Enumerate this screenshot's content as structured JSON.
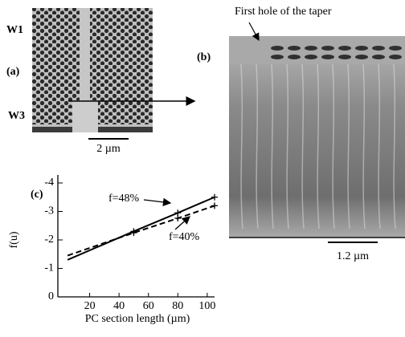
{
  "figure": {
    "panel_a": "(a)",
    "panel_b": "(b)",
    "panel_c": "(c)",
    "w1": "W1",
    "w3": "W3",
    "scale_a": "2 µm",
    "scale_b": "1.2 µm",
    "taper_note": "First hole of the taper"
  },
  "chart_data": {
    "type": "line",
    "x_label": "PC section length (µm)",
    "y_label": "f(u)",
    "x": [
      5,
      50,
      80,
      105
    ],
    "series": [
      {
        "name": "f=48%",
        "color": "#000000",
        "dash": "solid",
        "values": [
          -1.3,
          -2.3,
          -2.95,
          -3.5
        ]
      },
      {
        "name": "f=40%",
        "color": "#000000",
        "dash": "dashed",
        "values": [
          -1.45,
          -2.25,
          -2.76,
          -3.2
        ]
      }
    ],
    "xlim": [
      0,
      105
    ],
    "xticks": [
      20,
      40,
      60,
      80,
      100
    ],
    "ylim": [
      0,
      -4
    ],
    "yticks": [
      -4,
      -3,
      -2,
      -1,
      0
    ],
    "grid": false
  }
}
